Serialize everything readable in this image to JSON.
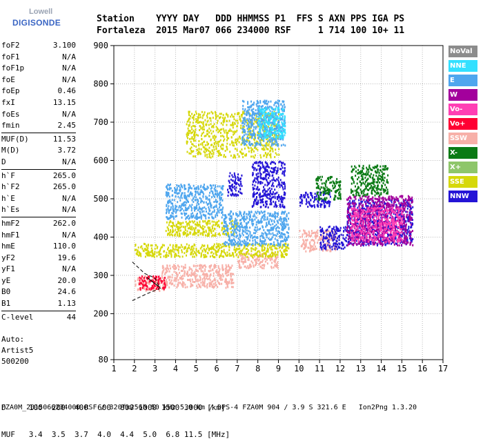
{
  "logo": {
    "line1": "Lowell",
    "line2": "DIGISONDE"
  },
  "header": {
    "line1": "Station    YYYY DAY   DDD HHMMSS P1  FFS S AXN PPS IGA PS",
    "line2": "Fortaleza  2015 Mar07 066 234000 RSF     1 714 100 10+ 11"
  },
  "params": [
    [
      {
        "label": "foF2",
        "value": "3.100"
      },
      {
        "label": "foF1",
        "value": "N/A"
      },
      {
        "label": "foF1p",
        "value": "N/A"
      },
      {
        "label": "foE",
        "value": "N/A"
      },
      {
        "label": "foEp",
        "value": "0.46"
      },
      {
        "label": "fxI",
        "value": "13.15"
      },
      {
        "label": "foEs",
        "value": "N/A"
      },
      {
        "label": "fmin",
        "value": "2.45"
      }
    ],
    [
      {
        "label": "MUF(D)",
        "value": "11.53"
      },
      {
        "label": "M(D)",
        "value": "3.72"
      },
      {
        "label": "D",
        "value": "N/A"
      }
    ],
    [
      {
        "label": "h`F",
        "value": "265.0"
      },
      {
        "label": "h`F2",
        "value": "265.0"
      },
      {
        "label": "h`E",
        "value": "N/A"
      },
      {
        "label": "h`Es",
        "value": "N/A"
      }
    ],
    [
      {
        "label": "hmF2",
        "value": "262.0"
      },
      {
        "label": "hmF1",
        "value": "N/A"
      },
      {
        "label": "hmE",
        "value": "110.0"
      },
      {
        "label": "yF2",
        "value": "19.6"
      },
      {
        "label": "yF1",
        "value": "N/A"
      },
      {
        "label": "yE",
        "value": "20.0"
      },
      {
        "label": "B0",
        "value": "24.6"
      },
      {
        "label": "B1",
        "value": "1.13"
      }
    ],
    [
      {
        "label": "C-level",
        "value": "44"
      }
    ]
  ],
  "auto": {
    "line1": "Auto:",
    "line2": "Artist5",
    "line3": "500200"
  },
  "dmuf": {
    "d_row": "D     100  200  400  600  800 1000 1500 3000 [km]",
    "muf_row": "MUF   3.4  3.5  3.7  4.0  4.4  5.0  6.8 11.5 [MHz]"
  },
  "footer": "FZA0M_2015066234000.RSF / 320fx256h 50 kHz 5.0 km / DPS-4 FZA0M 904 / 3.9 S 321.6 E   Ion2Png 1.3.20",
  "legend": [
    {
      "label": "NoVal",
      "color": "#8c8c8c"
    },
    {
      "label": "NNE",
      "color": "#33e0ff"
    },
    {
      "label": "E",
      "color": "#4fa6ee"
    },
    {
      "label": "W",
      "color": "#a3009c"
    },
    {
      "label": "Vo-",
      "color": "#ff3fb4"
    },
    {
      "label": "Vo+",
      "color": "#ff0033"
    },
    {
      "label": "SSW",
      "color": "#f7b0a8"
    },
    {
      "label": "X-",
      "color": "#0a7a14"
    },
    {
      "label": "X+",
      "color": "#8ec66a"
    },
    {
      "label": "SSE",
      "color": "#d6d80a"
    },
    {
      "label": "NNW",
      "color": "#2414d6"
    }
  ],
  "chart_data": {
    "type": "scatter",
    "title": "",
    "xlabel": "",
    "ylabel": "",
    "xlim": [
      1,
      17
    ],
    "ylim": [
      80,
      900
    ],
    "xticks": [
      "1",
      "2",
      "3",
      "4",
      "5",
      "6",
      "7",
      "8",
      "9",
      "10",
      "11",
      "12",
      "13",
      "14",
      "15",
      "16",
      "17"
    ],
    "yticks": [
      "80",
      "200",
      "300",
      "400",
      "500",
      "600",
      "700",
      "800",
      "900"
    ],
    "grid": true,
    "ytick_values": [
      80,
      200,
      300,
      400,
      500,
      600,
      700,
      800,
      900
    ],
    "clusters": [
      {
        "series": "SSW",
        "x": [
          2.0,
          3.5
        ],
        "y": [
          262,
          300
        ]
      },
      {
        "series": "SSW",
        "x": [
          3.3,
          6.8
        ],
        "y": [
          270,
          330
        ]
      },
      {
        "series": "SSW",
        "x": [
          7.0,
          9.0
        ],
        "y": [
          320,
          360
        ]
      },
      {
        "series": "SSW",
        "x": [
          10.0,
          11.8
        ],
        "y": [
          365,
          420
        ]
      },
      {
        "series": "Vo+",
        "x": [
          2.2,
          3.5
        ],
        "y": [
          265,
          300
        ]
      },
      {
        "series": "SSE",
        "x": [
          2.0,
          9.5
        ],
        "y": [
          350,
          385
        ]
      },
      {
        "series": "SSE",
        "x": [
          3.5,
          7.0
        ],
        "y": [
          405,
          445
        ]
      },
      {
        "series": "SSE",
        "x": [
          4.5,
          9.0
        ],
        "y": [
          610,
          730
        ]
      },
      {
        "series": "E",
        "x": [
          3.5,
          6.3
        ],
        "y": [
          450,
          540
        ]
      },
      {
        "series": "E",
        "x": [
          6.3,
          9.5
        ],
        "y": [
          380,
          470
        ]
      },
      {
        "series": "E",
        "x": [
          7.2,
          9.3
        ],
        "y": [
          640,
          760
        ]
      },
      {
        "series": "NNE",
        "x": [
          8.0,
          9.3
        ],
        "y": [
          660,
          740
        ]
      },
      {
        "series": "NNW",
        "x": [
          6.5,
          7.2
        ],
        "y": [
          510,
          570
        ]
      },
      {
        "series": "NNW",
        "x": [
          7.7,
          9.3
        ],
        "y": [
          480,
          600
        ]
      },
      {
        "series": "NNW",
        "x": [
          10.0,
          11.5
        ],
        "y": [
          480,
          520
        ]
      },
      {
        "series": "NNW",
        "x": [
          11.0,
          12.3
        ],
        "y": [
          370,
          430
        ]
      },
      {
        "series": "NNW",
        "x": [
          12.3,
          15.5
        ],
        "y": [
          380,
          500
        ]
      },
      {
        "series": "W",
        "x": [
          12.3,
          15.5
        ],
        "y": [
          380,
          510
        ]
      },
      {
        "series": "X-",
        "x": [
          10.8,
          12.0
        ],
        "y": [
          500,
          560
        ]
      },
      {
        "series": "X-",
        "x": [
          12.5,
          14.3
        ],
        "y": [
          510,
          590
        ]
      },
      {
        "series": "Vo-",
        "x": [
          12.5,
          15.0
        ],
        "y": [
          390,
          480
        ]
      }
    ],
    "profile_lines": [
      [
        [
          1.9,
          335
        ],
        [
          2.5,
          305
        ],
        [
          3.0,
          293
        ],
        [
          3.1,
          282
        ],
        [
          3.2,
          270
        ]
      ],
      [
        [
          1.9,
          234
        ],
        [
          2.6,
          252
        ],
        [
          3.3,
          267
        ]
      ]
    ]
  }
}
